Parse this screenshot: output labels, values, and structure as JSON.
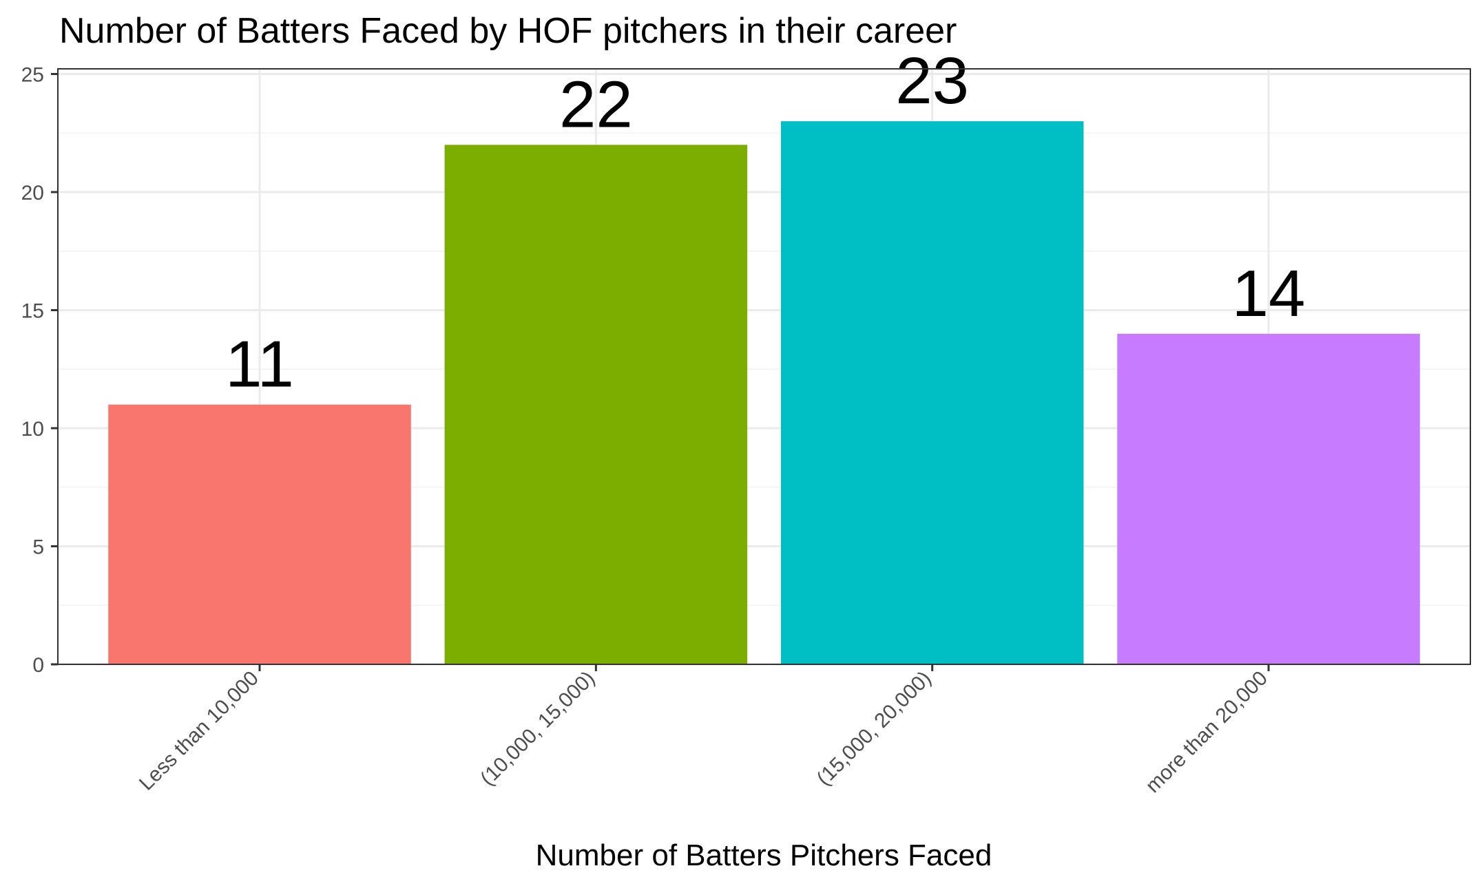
{
  "chart_data": {
    "type": "bar",
    "title": "Number of Batters Faced by HOF pitchers in their career",
    "xlabel": "Number of Batters Pitchers Faced",
    "ylabel": "",
    "categories": [
      "Less than 10,000",
      "(10,000, 15,000)",
      "(15,000, 20,000)",
      "more than 20,000"
    ],
    "values": [
      11,
      22,
      23,
      14
    ],
    "data_labels": [
      "11",
      "22",
      "23",
      "14"
    ],
    "colors": [
      "#F8766D",
      "#7CAE00",
      "#00BFC4",
      "#C77CFF"
    ],
    "ylim": [
      0,
      25
    ],
    "yticks": [
      0,
      5,
      10,
      15,
      20,
      25
    ],
    "ytick_labels": [
      "0",
      "5",
      "10",
      "15",
      "20",
      "25"
    ],
    "grid": true,
    "legend": "none"
  }
}
